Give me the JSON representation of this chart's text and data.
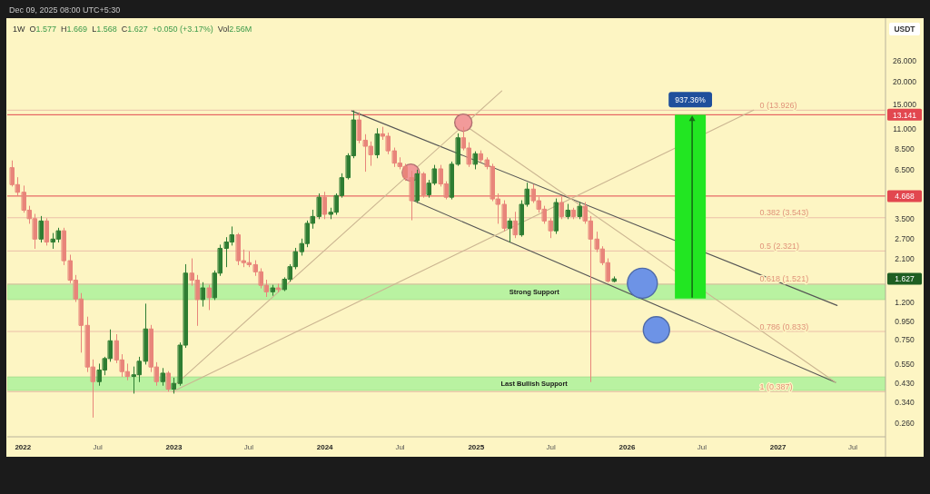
{
  "chart_data": {
    "type": "candlestick",
    "title": "Dec 09, 2025 08:00 UTC+5:30",
    "subtitle": "1W  O1.577  H1.669  L1.568  C1.627  +0.050 (+3.17%)  Vol2.56M",
    "ylabel": "USDT",
    "log": true,
    "xlim": [
      "2021-11-24",
      "2027-09-18"
    ],
    "ylim": [
      0.218,
      43.9
    ],
    "xticks": [
      {
        "value": "2022-01-01",
        "label": "2022"
      },
      {
        "value": "2022-07-01",
        "label": "Jul"
      },
      {
        "value": "2023-01-01",
        "label": "2023"
      },
      {
        "value": "2023-07-01",
        "label": "Jul"
      },
      {
        "value": "2024-01-01",
        "label": "2024"
      },
      {
        "value": "2024-07-01",
        "label": "Jul"
      },
      {
        "value": "2025-01-01",
        "label": "2025"
      },
      {
        "value": "2025-07-01",
        "label": "Jul"
      },
      {
        "value": "2026-01-01",
        "label": "2026"
      },
      {
        "value": "2026-07-01",
        "label": "Jul"
      },
      {
        "value": "2027-01-01",
        "label": "2027"
      },
      {
        "value": "2027-07-01",
        "label": "Jul"
      }
    ],
    "yticks": [
      {
        "value": 0.26,
        "label": "0.260"
      },
      {
        "value": 0.34,
        "label": "0.340"
      },
      {
        "value": 0.43,
        "label": "0.430"
      },
      {
        "value": 0.55,
        "label": "0.550"
      },
      {
        "value": 0.75,
        "label": "0.750"
      },
      {
        "value": 0.95,
        "label": "0.950"
      },
      {
        "value": 1.2,
        "label": "1.200"
      },
      {
        "value": 2.1,
        "label": "2.100"
      },
      {
        "value": 2.7,
        "label": "2.700"
      },
      {
        "value": 3.5,
        "label": "3.500"
      },
      {
        "value": 6.5,
        "label": "6.500"
      },
      {
        "value": 8.5,
        "label": "8.500"
      },
      {
        "value": 11,
        "label": "11.000"
      },
      {
        "value": 15,
        "label": "15.000"
      },
      {
        "value": 20,
        "label": "20.000"
      },
      {
        "value": 26,
        "label": "26.000"
      }
    ],
    "x": [
      "2021-12-06",
      "2021-12-20",
      "2022-01-03",
      "2022-01-17",
      "2022-01-31",
      "2022-02-14",
      "2022-02-28",
      "2022-03-14",
      "2022-03-28",
      "2022-04-11",
      "2022-04-25",
      "2022-05-09",
      "2022-05-23",
      "2022-06-06",
      "2022-06-20",
      "2022-07-04",
      "2022-07-18",
      "2022-08-01",
      "2022-08-15",
      "2022-08-29",
      "2022-09-12",
      "2022-09-26",
      "2022-10-10",
      "2022-10-24",
      "2022-11-07",
      "2022-11-21",
      "2022-12-05",
      "2022-12-19",
      "2023-01-02",
      "2023-01-16",
      "2023-01-30",
      "2023-02-13",
      "2023-02-27",
      "2023-03-13",
      "2023-03-27",
      "2023-04-10",
      "2023-04-24",
      "2023-05-08",
      "2023-05-22",
      "2023-06-05",
      "2023-06-19",
      "2023-07-03",
      "2023-07-17",
      "2023-07-31",
      "2023-08-14",
      "2023-08-28",
      "2023-09-11",
      "2023-09-25",
      "2023-10-09",
      "2023-10-23",
      "2023-11-06",
      "2023-11-20",
      "2023-12-04",
      "2023-12-18",
      "2024-01-01",
      "2024-01-15",
      "2024-01-29",
      "2024-02-12",
      "2024-02-26",
      "2024-03-11",
      "2024-03-25",
      "2024-04-08",
      "2024-04-22",
      "2024-05-06",
      "2024-05-20",
      "2024-06-03",
      "2024-06-17",
      "2024-07-01",
      "2024-07-15",
      "2024-07-29",
      "2024-08-12",
      "2024-08-26",
      "2024-09-09",
      "2024-09-23",
      "2024-10-07",
      "2024-10-21",
      "2024-11-04",
      "2024-11-18",
      "2024-12-02",
      "2024-12-16",
      "2024-12-30",
      "2025-01-13",
      "2025-01-27",
      "2025-02-10",
      "2025-02-24",
      "2025-03-10",
      "2025-03-24",
      "2025-04-07",
      "2025-04-21",
      "2025-05-05",
      "2025-05-19",
      "2025-06-02",
      "2025-06-16",
      "2025-06-30",
      "2025-07-14",
      "2025-07-28",
      "2025-08-11",
      "2025-08-25",
      "2025-09-08",
      "2025-09-22",
      "2025-10-06",
      "2025-10-20",
      "2025-11-03",
      "2025-11-17",
      "2025-12-01"
    ],
    "ohlc": [
      [
        6.7,
        7.3,
        5.3,
        5.4
      ],
      [
        5.4,
        5.9,
        4.7,
        4.9
      ],
      [
        4.9,
        5.3,
        3.8,
        3.9
      ],
      [
        3.9,
        4.1,
        3.3,
        3.5
      ],
      [
        3.5,
        3.7,
        2.4,
        2.7
      ],
      [
        2.7,
        3.6,
        2.6,
        3.4
      ],
      [
        3.4,
        3.5,
        2.5,
        2.6
      ],
      [
        2.6,
        2.9,
        2.4,
        2.7
      ],
      [
        2.7,
        3.1,
        2.6,
        3.0
      ],
      [
        3.0,
        3.1,
        1.95,
        2.05
      ],
      [
        2.05,
        2.2,
        1.55,
        1.6
      ],
      [
        1.6,
        1.7,
        1.22,
        1.26
      ],
      [
        1.26,
        1.35,
        0.64,
        0.9
      ],
      [
        0.9,
        1.0,
        0.5,
        0.53
      ],
      [
        0.53,
        0.58,
        0.28,
        0.44
      ],
      [
        0.44,
        0.55,
        0.42,
        0.51
      ],
      [
        0.51,
        0.6,
        0.48,
        0.59
      ],
      [
        0.59,
        0.85,
        0.57,
        0.74
      ],
      [
        0.74,
        0.8,
        0.56,
        0.58
      ],
      [
        0.58,
        0.62,
        0.47,
        0.5
      ],
      [
        0.5,
        0.55,
        0.45,
        0.47
      ],
      [
        0.47,
        0.53,
        0.38,
        0.48
      ],
      [
        0.48,
        0.6,
        0.44,
        0.57
      ],
      [
        0.57,
        1.18,
        0.55,
        0.86
      ],
      [
        0.86,
        0.9,
        0.5,
        0.53
      ],
      [
        0.53,
        0.56,
        0.42,
        0.44
      ],
      [
        0.44,
        0.52,
        0.42,
        0.49
      ],
      [
        0.49,
        0.5,
        0.39,
        0.4
      ],
      [
        0.4,
        0.46,
        0.38,
        0.43
      ],
      [
        0.43,
        0.72,
        0.42,
        0.7
      ],
      [
        0.7,
        1.95,
        0.68,
        1.75
      ],
      [
        1.75,
        2.1,
        1.5,
        1.6
      ],
      [
        1.6,
        1.7,
        0.9,
        1.25
      ],
      [
        1.25,
        1.55,
        1.15,
        1.45
      ],
      [
        1.45,
        1.5,
        1.1,
        1.28
      ],
      [
        1.28,
        1.8,
        1.25,
        1.75
      ],
      [
        1.75,
        2.5,
        1.7,
        2.4
      ],
      [
        2.4,
        2.75,
        1.9,
        2.6
      ],
      [
        2.6,
        3.15,
        2.5,
        2.85
      ],
      [
        2.85,
        2.9,
        1.95,
        2.05
      ],
      [
        2.05,
        2.35,
        1.9,
        2.0
      ],
      [
        2.0,
        2.3,
        1.9,
        1.95
      ],
      [
        1.95,
        2.05,
        1.7,
        1.78
      ],
      [
        1.78,
        1.85,
        1.45,
        1.5
      ],
      [
        1.5,
        1.6,
        1.3,
        1.38
      ],
      [
        1.38,
        1.5,
        1.32,
        1.45
      ],
      [
        1.45,
        1.52,
        1.38,
        1.42
      ],
      [
        1.42,
        1.65,
        1.4,
        1.62
      ],
      [
        1.62,
        1.95,
        1.58,
        1.9
      ],
      [
        1.9,
        2.4,
        1.85,
        2.3
      ],
      [
        2.3,
        2.7,
        2.2,
        2.55
      ],
      [
        2.55,
        3.4,
        2.45,
        3.3
      ],
      [
        3.3,
        3.9,
        3.1,
        3.6
      ],
      [
        3.6,
        4.8,
        3.5,
        4.6
      ],
      [
        4.6,
        4.9,
        3.5,
        3.7
      ],
      [
        3.7,
        4.0,
        3.5,
        3.8
      ],
      [
        3.8,
        4.8,
        3.7,
        4.7
      ],
      [
        4.7,
        6.2,
        4.6,
        5.9
      ],
      [
        5.9,
        8.0,
        5.8,
        7.8
      ],
      [
        7.8,
        13.8,
        7.6,
        12.3
      ],
      [
        12.3,
        13.5,
        9.2,
        9.5
      ],
      [
        9.5,
        10.2,
        6.4,
        8.8
      ],
      [
        8.8,
        9.3,
        6.9,
        7.9
      ],
      [
        7.9,
        11.0,
        7.6,
        10.3
      ],
      [
        10.3,
        11.2,
        9.6,
        10.0
      ],
      [
        10.0,
        10.4,
        8.0,
        8.3
      ],
      [
        8.3,
        8.6,
        6.8,
        7.1
      ],
      [
        7.1,
        7.6,
        6.6,
        6.8
      ],
      [
        6.8,
        7.0,
        5.7,
        5.9
      ],
      [
        5.9,
        6.4,
        3.45,
        4.4
      ],
      [
        4.4,
        6.5,
        4.3,
        6.2
      ],
      [
        6.2,
        6.3,
        4.6,
        4.75
      ],
      [
        4.75,
        5.7,
        4.6,
        5.5
      ],
      [
        5.5,
        6.9,
        5.4,
        6.6
      ],
      [
        6.6,
        6.9,
        5.3,
        5.45
      ],
      [
        5.45,
        5.6,
        4.5,
        4.6
      ],
      [
        4.6,
        7.2,
        4.5,
        7.0
      ],
      [
        7.0,
        10.3,
        6.9,
        9.8
      ],
      [
        9.8,
        11.2,
        8.4,
        8.6
      ],
      [
        8.6,
        9.2,
        6.8,
        7.0
      ],
      [
        7.0,
        8.2,
        6.6,
        8.0
      ],
      [
        8.0,
        8.3,
        7.2,
        7.4
      ],
      [
        7.4,
        7.6,
        6.6,
        6.8
      ],
      [
        6.8,
        7.0,
        4.4,
        4.5
      ],
      [
        4.5,
        4.8,
        3.3,
        4.2
      ],
      [
        4.2,
        4.4,
        3.0,
        3.1
      ],
      [
        3.1,
        3.5,
        2.6,
        3.4
      ],
      [
        3.4,
        3.8,
        2.75,
        2.85
      ],
      [
        2.85,
        4.4,
        2.8,
        4.2
      ],
      [
        4.2,
        5.5,
        4.1,
        5.1
      ],
      [
        5.1,
        5.4,
        4.3,
        4.4
      ],
      [
        4.4,
        4.6,
        3.8,
        3.95
      ],
      [
        3.95,
        4.1,
        3.3,
        3.4
      ],
      [
        3.4,
        3.5,
        2.75,
        3.0
      ],
      [
        3.0,
        4.5,
        2.9,
        4.3
      ],
      [
        4.3,
        4.6,
        3.5,
        3.6
      ],
      [
        3.6,
        4.2,
        3.5,
        3.9
      ],
      [
        3.9,
        4.0,
        3.5,
        3.6
      ],
      [
        3.6,
        4.3,
        3.5,
        4.1
      ],
      [
        4.1,
        4.3,
        3.3,
        3.4
      ],
      [
        3.4,
        3.6,
        0.44,
        2.7
      ],
      [
        2.7,
        2.95,
        2.3,
        2.38
      ],
      [
        2.38,
        2.45,
        1.95,
        2.0
      ],
      [
        2.0,
        2.1,
        1.56,
        1.58
      ],
      [
        1.577,
        1.669,
        1.568,
        1.627
      ]
    ],
    "series": [
      {
        "type": "line",
        "color": "#555555",
        "x": [
          "2024-03-06",
          "2027-05-24"
        ],
        "values": [
          13.8,
          1.16
        ]
      },
      {
        "type": "line",
        "color": "#555555",
        "x": [
          "2024-07-29",
          "2027-05-20"
        ],
        "values": [
          4.45,
          0.436
        ]
      },
      {
        "type": "line",
        "color": "#cbb591",
        "x": [
          "2022-12-29",
          "2025-03-04"
        ],
        "values": [
          0.41,
          17.8
        ]
      },
      {
        "type": "line",
        "color": "#cbb591",
        "x": [
          "2022-12-29",
          "2026-11-03"
        ],
        "values": [
          0.387,
          13.926
        ]
      },
      {
        "type": "line",
        "color": "#cbb591",
        "x": [
          "2024-12-12",
          "2027-05-20"
        ],
        "values": [
          11.2,
          0.436
        ]
      },
      {
        "type": "scatter",
        "marker": "circle",
        "color": "#f29a9a",
        "x": [
          "2024-07-27",
          "2024-12-01"
        ],
        "values": [
          6.29,
          11.88
        ]
      },
      {
        "type": "bubble",
        "marker": "circle",
        "color": "#6d93e6",
        "x": [
          "2026-02-07",
          "2026-03-13"
        ],
        "values": [
          1.54,
          0.85
        ],
        "sizes": [
          1,
          0.77
        ]
      },
      {
        "type": "bar",
        "color": "#22e622",
        "x": [
          "2026-06-03"
        ],
        "base": [
          1.267
        ],
        "values": [
          11.874
        ]
      }
    ],
    "ref_lines": [
      {
        "axis": "y",
        "value": 13.141,
        "label": "13.141",
        "color": "#e2474f"
      },
      {
        "axis": "y",
        "value": 4.668,
        "label": "4.668",
        "color": "#e2474f"
      },
      {
        "axis": "y",
        "value": 13.926,
        "color": "#ebbfa8"
      },
      {
        "axis": "y",
        "value": 3.543,
        "color": "#ebbfa8"
      },
      {
        "axis": "y",
        "value": 2.321,
        "color": "#ebbfa8"
      },
      {
        "axis": "y",
        "value": 1.521,
        "color": "#ebbfa8"
      },
      {
        "axis": "y",
        "value": 0.833,
        "color": "#ebbfa8"
      },
      {
        "axis": "y",
        "value": 0.387,
        "color": "#ebbfa8"
      }
    ],
    "bands": [
      {
        "axis": "y",
        "from": 1.25,
        "to": 1.521,
        "label": "Strong Support",
        "color": "#aef29c"
      },
      {
        "axis": "y",
        "from": 0.393,
        "to": 0.467,
        "label": "Last Bullish Support",
        "color": "#aef29c"
      }
    ],
    "annotations": [
      {
        "text": "937.36%",
        "x": "2026-06-03",
        "y": 13.141
      },
      {
        "text": "0 (13.926)",
        "x": "2026-11-18",
        "y": 13.926
      },
      {
        "text": "0.382 (3.543)",
        "x": "2026-11-18",
        "y": 3.543
      },
      {
        "text": "0.5 (2.321)",
        "x": "2026-11-18",
        "y": 2.321
      },
      {
        "text": "0.618 (1.521)",
        "x": "2026-11-18",
        "y": 1.521
      },
      {
        "text": "0.786 (0.833)",
        "x": "2026-11-18",
        "y": 0.833
      },
      {
        "text": "1 (0.387)",
        "x": "2026-11-18",
        "y": 0.387
      },
      {
        "text": "1.627",
        "y": 1.627
      }
    ]
  }
}
